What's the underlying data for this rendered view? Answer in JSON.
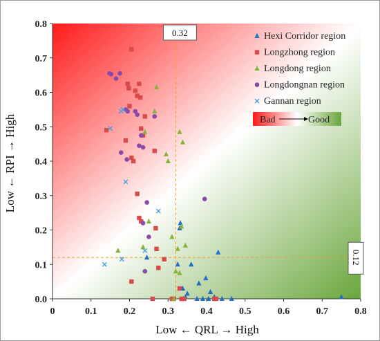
{
  "chart_data": {
    "type": "scatter",
    "xlabel": "Low ← QRL → High",
    "ylabel": "Low ← RPI → High",
    "xlim": [
      0,
      0.8
    ],
    "ylim": [
      0,
      0.8
    ],
    "x_ticks": [
      "0",
      "0.1",
      "0.2",
      "0.3",
      "0.4",
      "0.5",
      "0.6",
      "0.7",
      "0.8"
    ],
    "y_ticks": [
      "0.0",
      "0.1",
      "0.2",
      "0.3",
      "0.4",
      "0.5",
      "0.6",
      "0.7",
      "0.8"
    ],
    "grid": false,
    "legend_position": "top-right",
    "background_gradient": {
      "bad_color": "#ff1a1a",
      "good_color": "#6aa63c",
      "direction": "top-left bad to bottom-right good"
    },
    "gradient_legend": {
      "bad_label": "Bad",
      "good_label": "Good"
    },
    "reference_lines": [
      {
        "axis": "x",
        "value": 0.32,
        "label": "0.32",
        "color": "#f0a030"
      },
      {
        "axis": "y",
        "value": 0.12,
        "label": "0.12",
        "color": "#f0a030"
      }
    ],
    "series": [
      {
        "name": "Hexi Corridor region",
        "marker": "triangle",
        "color": "#1f6fc5",
        "points": [
          [
            0.325,
            0.1
          ],
          [
            0.33,
            0.205
          ],
          [
            0.332,
            0.22
          ],
          [
            0.338,
            0.03
          ],
          [
            0.34,
            0.0
          ],
          [
            0.345,
            0.005
          ],
          [
            0.35,
            0.015
          ],
          [
            0.36,
            0.1
          ],
          [
            0.375,
            0.0
          ],
          [
            0.38,
            0.045
          ],
          [
            0.39,
            0.0
          ],
          [
            0.398,
            0.06
          ],
          [
            0.405,
            0.0
          ],
          [
            0.41,
            0.02
          ],
          [
            0.42,
            0.005
          ],
          [
            0.43,
            0.135
          ],
          [
            0.44,
            0.0
          ],
          [
            0.465,
            0.0
          ],
          [
            0.245,
            0.12
          ],
          [
            0.75,
            0.005
          ]
        ]
      },
      {
        "name": "Longzhong region",
        "marker": "square",
        "color": "#d94a4a",
        "points": [
          [
            0.14,
            0.49
          ],
          [
            0.19,
            0.46
          ],
          [
            0.195,
            0.625
          ],
          [
            0.198,
            0.612
          ],
          [
            0.2,
            0.56
          ],
          [
            0.205,
            0.725
          ],
          [
            0.205,
            0.41
          ],
          [
            0.21,
            0.4
          ],
          [
            0.215,
            0.605
          ],
          [
            0.22,
            0.59
          ],
          [
            0.225,
            0.625
          ],
          [
            0.228,
            0.585
          ],
          [
            0.23,
            0.495
          ],
          [
            0.235,
            0.475
          ],
          [
            0.24,
            0.53
          ],
          [
            0.22,
            0.305
          ],
          [
            0.225,
            0.235
          ],
          [
            0.23,
            0.225
          ],
          [
            0.265,
            0.43
          ],
          [
            0.268,
            0.205
          ],
          [
            0.27,
            0.145
          ],
          [
            0.275,
            0.09
          ],
          [
            0.29,
            0.115
          ],
          [
            0.205,
            0.05
          ],
          [
            0.26,
            0.0
          ],
          [
            0.31,
            0.0
          ],
          [
            0.315,
            0.0
          ],
          [
            0.33,
            0.03
          ],
          [
            0.335,
            0.0
          ],
          [
            0.342,
            0.0
          ],
          [
            0.42,
            0.0
          ],
          [
            0.425,
            0.0
          ]
        ]
      },
      {
        "name": "Longdong region",
        "marker": "triangle",
        "color": "#86b43c",
        "points": [
          [
            0.17,
            0.14
          ],
          [
            0.235,
            0.15
          ],
          [
            0.24,
            0.485
          ],
          [
            0.25,
            0.225
          ],
          [
            0.265,
            0.545
          ],
          [
            0.27,
            0.615
          ],
          [
            0.295,
            0.42
          ],
          [
            0.3,
            0.4
          ],
          [
            0.31,
            0.18
          ],
          [
            0.315,
            0.0
          ],
          [
            0.32,
            0.08
          ],
          [
            0.325,
            0.145
          ],
          [
            0.33,
            0.485
          ],
          [
            0.335,
            0.21
          ],
          [
            0.338,
            0.455
          ],
          [
            0.345,
            0.155
          ],
          [
            0.33,
            0.075
          ]
        ]
      },
      {
        "name": "Longdongnan region",
        "marker": "circle",
        "color": "#8a4aaa",
        "points": [
          [
            0.148,
            0.655
          ],
          [
            0.152,
            0.653
          ],
          [
            0.165,
            0.64
          ],
          [
            0.175,
            0.655
          ],
          [
            0.178,
            0.425
          ],
          [
            0.19,
            0.55
          ],
          [
            0.193,
            0.405
          ],
          [
            0.195,
            0.545
          ],
          [
            0.215,
            0.545
          ],
          [
            0.22,
            0.535
          ],
          [
            0.225,
            0.445
          ],
          [
            0.23,
            0.475
          ],
          [
            0.235,
            0.44
          ],
          [
            0.235,
            0.22
          ],
          [
            0.24,
            0.08
          ],
          [
            0.245,
            0.28
          ],
          [
            0.25,
            0.18
          ],
          [
            0.265,
            0.53
          ],
          [
            0.395,
            0.29
          ]
        ]
      },
      {
        "name": "Gannan region",
        "marker": "x",
        "color": "#4a9ed8",
        "points": [
          [
            0.135,
            0.1
          ],
          [
            0.15,
            0.495
          ],
          [
            0.178,
            0.545
          ],
          [
            0.18,
            0.115
          ],
          [
            0.183,
            0.55
          ],
          [
            0.19,
            0.34
          ],
          [
            0.24,
            0.14
          ],
          [
            0.275,
            0.255
          ]
        ]
      }
    ]
  }
}
